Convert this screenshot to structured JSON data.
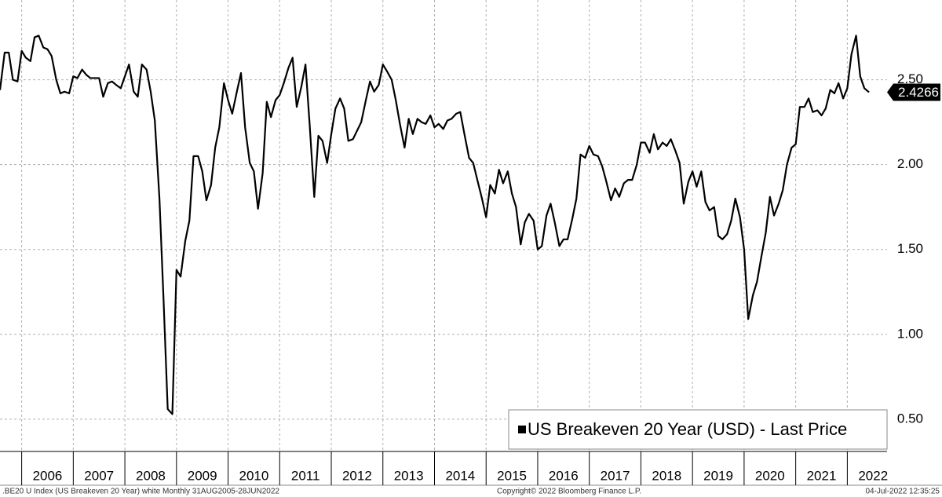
{
  "chart_data": {
    "type": "line",
    "xlim": [
      2005.58,
      2022.77
    ],
    "xticks": [
      2006,
      2007,
      2008,
      2009,
      2010,
      2011,
      2012,
      2013,
      2014,
      2015,
      2016,
      2017,
      2018,
      2019,
      2020,
      2021,
      2022
    ],
    "ylim": [
      0.31,
      2.97
    ],
    "yticks": [
      {
        "value": 0.5,
        "label": "0.50"
      },
      {
        "value": 1,
        "label": "1.00"
      },
      {
        "value": 1.5,
        "label": "1.50"
      },
      {
        "value": 2,
        "label": "2.00"
      },
      {
        "value": 2.5,
        "label": "2.50"
      }
    ],
    "grid": true,
    "legend": "lower right",
    "x": [
      2005.58,
      2005.67,
      2005.75,
      2005.83,
      2005.92,
      2006.0,
      2006.08,
      2006.17,
      2006.25,
      2006.33,
      2006.42,
      2006.5,
      2006.58,
      2006.67,
      2006.75,
      2006.83,
      2006.92,
      2007.0,
      2007.08,
      2007.17,
      2007.25,
      2007.33,
      2007.42,
      2007.5,
      2007.58,
      2007.67,
      2007.75,
      2007.83,
      2007.92,
      2008.0,
      2008.08,
      2008.17,
      2008.25,
      2008.33,
      2008.42,
      2008.5,
      2008.58,
      2008.67,
      2008.75,
      2008.83,
      2008.92,
      2009.0,
      2009.08,
      2009.17,
      2009.25,
      2009.33,
      2009.42,
      2009.5,
      2009.58,
      2009.67,
      2009.75,
      2009.83,
      2009.92,
      2010.0,
      2010.08,
      2010.17,
      2010.25,
      2010.33,
      2010.42,
      2010.5,
      2010.58,
      2010.67,
      2010.75,
      2010.83,
      2010.92,
      2011.0,
      2011.08,
      2011.17,
      2011.25,
      2011.33,
      2011.42,
      2011.5,
      2011.58,
      2011.67,
      2011.75,
      2011.83,
      2011.92,
      2012.0,
      2012.08,
      2012.17,
      2012.25,
      2012.33,
      2012.42,
      2012.5,
      2012.58,
      2012.67,
      2012.75,
      2012.83,
      2012.92,
      2013.0,
      2013.08,
      2013.17,
      2013.25,
      2013.33,
      2013.42,
      2013.5,
      2013.58,
      2013.67,
      2013.75,
      2013.83,
      2013.92,
      2014.0,
      2014.08,
      2014.17,
      2014.25,
      2014.33,
      2014.42,
      2014.5,
      2014.58,
      2014.67,
      2014.75,
      2014.83,
      2014.92,
      2015.0,
      2015.08,
      2015.17,
      2015.25,
      2015.33,
      2015.42,
      2015.5,
      2015.58,
      2015.67,
      2015.75,
      2015.83,
      2015.92,
      2016.0,
      2016.08,
      2016.17,
      2016.25,
      2016.33,
      2016.42,
      2016.5,
      2016.58,
      2016.67,
      2016.75,
      2016.83,
      2016.92,
      2017.0,
      2017.08,
      2017.17,
      2017.25,
      2017.33,
      2017.42,
      2017.5,
      2017.58,
      2017.67,
      2017.75,
      2017.83,
      2017.92,
      2018.0,
      2018.08,
      2018.17,
      2018.25,
      2018.33,
      2018.42,
      2018.5,
      2018.58,
      2018.67,
      2018.75,
      2018.83,
      2018.92,
      2019.0,
      2019.08,
      2019.17,
      2019.25,
      2019.33,
      2019.42,
      2019.5,
      2019.58,
      2019.67,
      2019.75,
      2019.83,
      2019.92,
      2020.0,
      2020.08,
      2020.17,
      2020.25,
      2020.33,
      2020.42,
      2020.5,
      2020.58,
      2020.67,
      2020.75,
      2020.83,
      2020.92,
      2021.0,
      2021.08,
      2021.17,
      2021.25,
      2021.33,
      2021.42,
      2021.5,
      2021.58,
      2021.67,
      2021.75,
      2021.83,
      2021.92,
      2022.0,
      2022.08,
      2022.17,
      2022.25,
      2022.33,
      2022.42
    ],
    "series": [
      {
        "name": "US Breakeven 20 Year (USD) - Last Price",
        "color": "#000000",
        "values": [
          2.44,
          2.66,
          2.66,
          2.5,
          2.49,
          2.67,
          2.63,
          2.61,
          2.75,
          2.76,
          2.69,
          2.68,
          2.64,
          2.5,
          2.42,
          2.43,
          2.42,
          2.52,
          2.51,
          2.56,
          2.53,
          2.51,
          2.51,
          2.51,
          2.4,
          2.48,
          2.49,
          2.47,
          2.45,
          2.52,
          2.59,
          2.43,
          2.4,
          2.59,
          2.56,
          2.43,
          2.26,
          1.8,
          1.2,
          0.56,
          0.53,
          1.38,
          1.34,
          1.55,
          1.67,
          2.05,
          2.05,
          1.96,
          1.79,
          1.88,
          2.1,
          2.22,
          2.48,
          2.38,
          2.3,
          2.43,
          2.54,
          2.22,
          2.01,
          1.96,
          1.74,
          1.95,
          2.37,
          2.28,
          2.38,
          2.41,
          2.48,
          2.57,
          2.63,
          2.34,
          2.46,
          2.59,
          2.24,
          1.81,
          2.17,
          2.14,
          2.01,
          2.18,
          2.33,
          2.39,
          2.33,
          2.14,
          2.15,
          2.2,
          2.25,
          2.38,
          2.49,
          2.43,
          2.47,
          2.59,
          2.55,
          2.5,
          2.38,
          2.24,
          2.1,
          2.27,
          2.18,
          2.27,
          2.25,
          2.24,
          2.29,
          2.22,
          2.24,
          2.21,
          2.26,
          2.27,
          2.3,
          2.31,
          2.18,
          2.04,
          2.01,
          1.91,
          1.8,
          1.69,
          1.88,
          1.83,
          1.97,
          1.89,
          1.96,
          1.83,
          1.75,
          1.53,
          1.66,
          1.71,
          1.67,
          1.5,
          1.52,
          1.7,
          1.77,
          1.66,
          1.52,
          1.56,
          1.56,
          1.68,
          1.8,
          2.06,
          2.04,
          2.11,
          2.06,
          2.05,
          1.99,
          1.9,
          1.79,
          1.86,
          1.81,
          1.89,
          1.91,
          1.91,
          2.0,
          2.13,
          2.13,
          2.07,
          2.18,
          2.09,
          2.13,
          2.11,
          2.15,
          2.08,
          2.01,
          1.77,
          1.9,
          1.96,
          1.87,
          1.96,
          1.78,
          1.73,
          1.75,
          1.58,
          1.56,
          1.59,
          1.67,
          1.8,
          1.69,
          1.5,
          1.09,
          1.23,
          1.31,
          1.45,
          1.6,
          1.81,
          1.7,
          1.77,
          1.85,
          2.0,
          2.1,
          2.12,
          2.34,
          2.34,
          2.39,
          2.31,
          2.32,
          2.29,
          2.33,
          2.44,
          2.42,
          2.48,
          2.39,
          2.45,
          2.65,
          2.76,
          2.52,
          2.45,
          2.4266
        ]
      }
    ],
    "footer": {
      "left": ".BE20 U Index (US Breakeven 20 Year) white  Monthly 31AUG2005-28JUN2022",
      "center": "Copyright© 2022 Bloomberg Finance L.P.",
      "right": "04-Jul-2022 12:35:25"
    }
  }
}
